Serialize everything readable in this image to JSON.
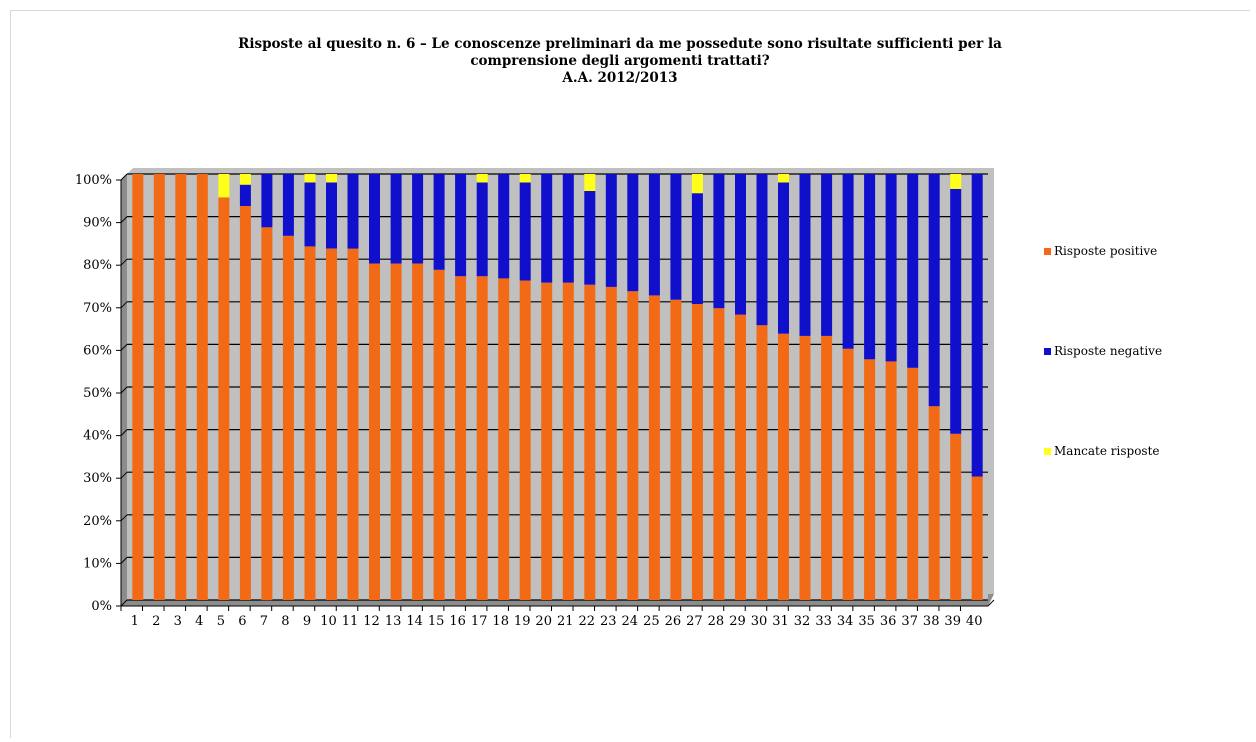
{
  "chart_data": {
    "type": "bar",
    "stacked": true,
    "title_lines": [
      "Risposte al quesito n. 6 – Le conoscenze preliminari da me possedute sono risultate sufficienti per la",
      "comprensione degli argomenti trattati?",
      "A.A. 2012/2013"
    ],
    "categories": [
      "1",
      "2",
      "3",
      "4",
      "5",
      "6",
      "7",
      "8",
      "9",
      "10",
      "11",
      "12",
      "13",
      "14",
      "15",
      "16",
      "17",
      "18",
      "19",
      "20",
      "21",
      "22",
      "23",
      "24",
      "25",
      "26",
      "27",
      "28",
      "29",
      "30",
      "31",
      "32",
      "33",
      "34",
      "35",
      "36",
      "37",
      "38",
      "39",
      "40"
    ],
    "series": [
      {
        "name": "Risposte positive",
        "color": "#f26a16",
        "values": [
          100,
          100,
          100,
          100,
          94.5,
          92.5,
          87.5,
          85.5,
          83,
          82.5,
          82.5,
          79,
          79,
          79,
          77.5,
          76,
          76,
          75.5,
          75,
          74.5,
          74.5,
          74,
          73.5,
          72.5,
          71.5,
          70.5,
          69.5,
          68.5,
          67,
          64.5,
          62.5,
          62,
          62,
          59,
          56.5,
          56,
          54.5,
          45.5,
          39,
          29
        ]
      },
      {
        "name": "Risposte negative",
        "color": "#1010cc",
        "values": [
          0,
          0,
          0,
          0,
          0,
          5,
          12.5,
          14.5,
          15,
          15.5,
          17.5,
          21,
          21,
          21,
          22.5,
          24,
          22,
          24.5,
          23,
          25.5,
          25.5,
          22,
          26.5,
          27.5,
          28.5,
          29.5,
          26,
          31.5,
          33,
          35.5,
          35.5,
          38,
          38,
          41,
          43.5,
          44,
          45.5,
          54.5,
          57.5,
          71
        ]
      },
      {
        "name": "Mancate risposte",
        "color": "#ffff19",
        "values": [
          0,
          0,
          0,
          0,
          5.5,
          2.5,
          0,
          0,
          2,
          2,
          0,
          0,
          0,
          0,
          0,
          0,
          2,
          0,
          2,
          0,
          0,
          4,
          0,
          0,
          0,
          0,
          4.5,
          0,
          0,
          0,
          2,
          0,
          0,
          0,
          0,
          0,
          0,
          0,
          3.5,
          0
        ]
      }
    ],
    "ylim": [
      0,
      100
    ],
    "yticks": [
      "0%",
      "10%",
      "20%",
      "30%",
      "40%",
      "50%",
      "60%",
      "70%",
      "80%",
      "90%",
      "100%"
    ],
    "grid": true,
    "legend_position": "right",
    "plot_background": "#c0c0c0"
  }
}
